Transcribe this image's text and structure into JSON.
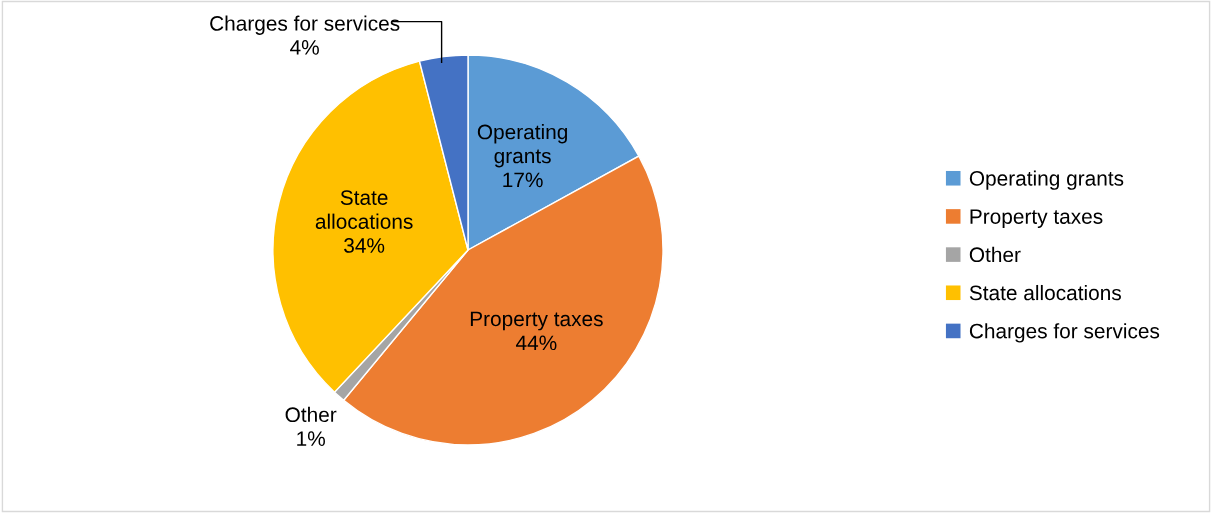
{
  "chart_data": {
    "type": "pie",
    "categories": [
      "Operating grants",
      "Property taxes",
      "Other",
      "State allocations",
      "Charges for services"
    ],
    "values": [
      17,
      44,
      1,
      34,
      4
    ],
    "colors": [
      "#5b9bd5",
      "#ed7d31",
      "#a5a5a5",
      "#ffc000",
      "#4472c4"
    ],
    "value_labels": [
      "17%",
      "44%",
      "1%",
      "34%",
      "4%"
    ],
    "legend": "right"
  }
}
